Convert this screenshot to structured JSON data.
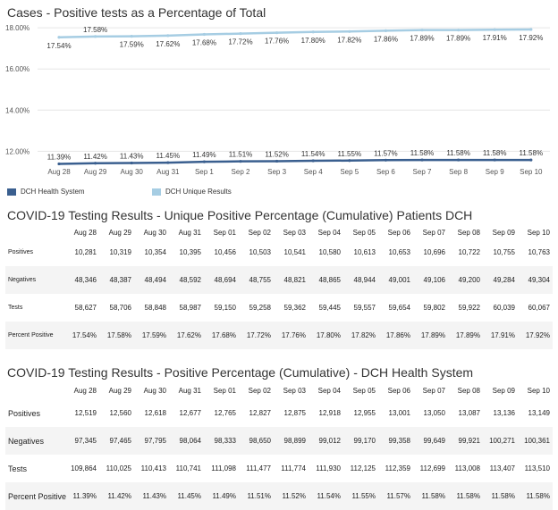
{
  "chart_title": "Cases - Positive tests as a Percentage of Total",
  "chart_data": {
    "type": "line",
    "title": "Cases - Positive tests as a Percentage of Total",
    "x": [
      "Aug 28",
      "Aug 29",
      "Aug 30",
      "Aug 31",
      "Sep 1",
      "Sep 2",
      "Sep 3",
      "Sep 4",
      "Sep 5",
      "Sep 6",
      "Sep 7",
      "Sep 8",
      "Sep 9",
      "Sep 10"
    ],
    "ylim": [
      11.8,
      18.05
    ],
    "yticks": [
      "18.00%",
      "16.00%",
      "14.00%",
      "12.00%"
    ],
    "ytick_values": [
      18,
      16,
      14,
      12
    ],
    "grid": true,
    "legend_position": "bottom",
    "series": [
      {
        "name": "DCH Health System",
        "color": "#3a5f8f",
        "values": [
          11.39,
          11.42,
          11.43,
          11.45,
          11.49,
          11.51,
          11.52,
          11.54,
          11.55,
          11.57,
          11.58,
          11.58,
          11.58,
          11.58
        ],
        "labels": [
          "11.39%",
          "11.42%",
          "11.43%",
          "11.45%",
          "11.49%",
          "11.51%",
          "11.52%",
          "11.54%",
          "11.55%",
          "11.57%",
          "11.58%",
          "11.58%",
          "11.58%",
          "11.58%"
        ]
      },
      {
        "name": "DCH Unique Results",
        "color": "#a6cde3",
        "values": [
          17.54,
          17.58,
          17.59,
          17.62,
          17.68,
          17.72,
          17.76,
          17.8,
          17.82,
          17.86,
          17.89,
          17.89,
          17.91,
          17.92
        ],
        "labels": [
          "17.54%",
          "17.58%",
          "17.59%",
          "17.62%",
          "17.68%",
          "17.72%",
          "17.76%",
          "17.80%",
          "17.82%",
          "17.86%",
          "17.89%",
          "17.89%",
          "17.91%",
          "17.92%"
        ]
      }
    ]
  },
  "legend": [
    {
      "label": "DCH Health System",
      "color": "#3a5f8f"
    },
    {
      "label": "DCH Unique Results",
      "color": "#a6cde3"
    }
  ],
  "table1": {
    "title": "COVID-19 Testing Results - Unique Positive Percentage (Cumulative) Patients DCH",
    "columns": [
      "Aug 28",
      "Aug 29",
      "Aug 30",
      "Aug 31",
      "Sep 01",
      "Sep 02",
      "Sep 03",
      "Sep 04",
      "Sep 05",
      "Sep 06",
      "Sep 07",
      "Sep 08",
      "Sep 09",
      "Sep 10"
    ],
    "rows": [
      {
        "label": "Positives",
        "values": [
          "10,281",
          "10,319",
          "10,354",
          "10,395",
          "10,456",
          "10,503",
          "10,541",
          "10,580",
          "10,613",
          "10,653",
          "10,696",
          "10,722",
          "10,755",
          "10,763"
        ]
      },
      {
        "label": "Negatives",
        "values": [
          "48,346",
          "48,387",
          "48,494",
          "48,592",
          "48,694",
          "48,755",
          "48,821",
          "48,865",
          "48,944",
          "49,001",
          "49,106",
          "49,200",
          "49,284",
          "49,304"
        ]
      },
      {
        "label": "Tests",
        "values": [
          "58,627",
          "58,706",
          "58,848",
          "58,987",
          "59,150",
          "59,258",
          "59,362",
          "59,445",
          "59,557",
          "59,654",
          "59,802",
          "59,922",
          "60,039",
          "60,067"
        ]
      },
      {
        "label": "Percent Positive",
        "values": [
          "17.54%",
          "17.58%",
          "17.59%",
          "17.62%",
          "17.68%",
          "17.72%",
          "17.76%",
          "17.80%",
          "17.82%",
          "17.86%",
          "17.89%",
          "17.89%",
          "17.91%",
          "17.92%"
        ]
      }
    ]
  },
  "table2": {
    "title": "COVID-19 Testing Results - Positive Percentage (Cumulative) - DCH Health System",
    "columns": [
      "Aug 28",
      "Aug 29",
      "Aug 30",
      "Aug 31",
      "Sep 01",
      "Sep 02",
      "Sep 03",
      "Sep 04",
      "Sep 05",
      "Sep 06",
      "Sep 07",
      "Sep 08",
      "Sep 09",
      "Sep 10"
    ],
    "rows": [
      {
        "label": "Positives",
        "values": [
          "12,519",
          "12,560",
          "12,618",
          "12,677",
          "12,765",
          "12,827",
          "12,875",
          "12,918",
          "12,955",
          "13,001",
          "13,050",
          "13,087",
          "13,136",
          "13,149"
        ]
      },
      {
        "label": "Negatives",
        "values": [
          "97,345",
          "97,465",
          "97,795",
          "98,064",
          "98,333",
          "98,650",
          "98,899",
          "99,012",
          "99,170",
          "99,358",
          "99,649",
          "99,921",
          "100,271",
          "100,361"
        ]
      },
      {
        "label": "Tests",
        "values": [
          "109,864",
          "110,025",
          "110,413",
          "110,741",
          "111,098",
          "111,477",
          "111,774",
          "111,930",
          "112,125",
          "112,359",
          "112,699",
          "113,008",
          "113,407",
          "113,510"
        ]
      },
      {
        "label": "Percent Positive",
        "values": [
          "11.39%",
          "11.42%",
          "11.43%",
          "11.45%",
          "11.49%",
          "11.51%",
          "11.52%",
          "11.54%",
          "11.55%",
          "11.57%",
          "11.58%",
          "11.58%",
          "11.58%",
          "11.58%"
        ]
      }
    ]
  }
}
